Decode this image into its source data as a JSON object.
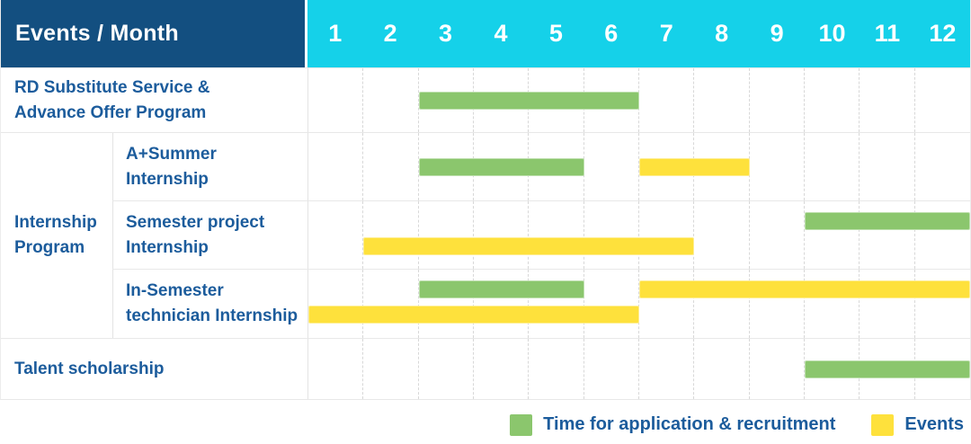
{
  "header": {
    "title": "Events / Month",
    "months": [
      "1",
      "2",
      "3",
      "4",
      "5",
      "6",
      "7",
      "8",
      "9",
      "10",
      "11",
      "12"
    ]
  },
  "colors": {
    "header_bg": "#134F80",
    "months_bg": "#15D1E9",
    "label_text": "#1C5C9C",
    "green": "#8BC66D",
    "yellow": "#FEE13C"
  },
  "rows": [
    {
      "kind": "simple",
      "label": "RD Substitute Service & Advance Offer Program",
      "label_lines": [
        "RD Substitute Service &",
        "Advance Offer Program"
      ],
      "height": 71,
      "bar_lines": [
        [
          {
            "color": "green",
            "start": 3,
            "end": 6
          }
        ]
      ]
    },
    {
      "kind": "group",
      "label": "Internship Program",
      "label_lines": [
        "Internship",
        "Program"
      ],
      "children": [
        {
          "label": "A+Summer Internship",
          "label_lines": [
            "A+Summer",
            "Internship"
          ],
          "height": 75,
          "bar_lines": [
            [
              {
                "color": "green",
                "start": 3,
                "end": 5
              },
              {
                "color": "yellow",
                "start": 7,
                "end": 8
              }
            ]
          ]
        },
        {
          "label": "Semester project Internship",
          "label_lines": [
            "Semester project",
            "Internship"
          ],
          "height": 75,
          "bar_lines": [
            [
              {
                "color": "green",
                "start": 10,
                "end": 12
              }
            ],
            [
              {
                "color": "yellow",
                "start": 2,
                "end": 7
              }
            ]
          ]
        },
        {
          "label": "In-Semester technician Internship",
          "label_lines": [
            "In-Semester",
            "technician Internship"
          ],
          "height": 76,
          "bar_lines": [
            [
              {
                "color": "green",
                "start": 3,
                "end": 5
              },
              {
                "color": "yellow",
                "start": 7,
                "end": 12
              }
            ],
            [
              {
                "color": "yellow",
                "start": 1,
                "end": 6
              }
            ]
          ]
        }
      ]
    },
    {
      "kind": "simple",
      "label": "Talent scholarship",
      "label_lines": [
        "Talent scholarship"
      ],
      "height": 67,
      "bar_lines": [
        [
          {
            "color": "green",
            "start": 10,
            "end": 12
          }
        ]
      ]
    }
  ],
  "legend": {
    "items": [
      {
        "color_key": "green",
        "label": "Time for application & recruitment"
      },
      {
        "color_key": "yellow",
        "label": "Events"
      }
    ]
  },
  "chart_data": {
    "type": "bar",
    "subtype": "gantt",
    "title": "Events / Month",
    "x_axis": {
      "label": "Month",
      "ticks": [
        1,
        2,
        3,
        4,
        5,
        6,
        7,
        8,
        9,
        10,
        11,
        12
      ],
      "range": [
        1,
        12
      ]
    },
    "gridlines": "vertical dashed per month",
    "legend_position": "bottom-right",
    "series_legend": [
      {
        "name": "Time for application & recruitment",
        "color": "#8BC66D"
      },
      {
        "name": "Events",
        "color": "#FEE13C"
      }
    ],
    "rows": [
      {
        "event": "RD Substitute Service & Advance Offer Program",
        "group": null,
        "segments": [
          {
            "series": "Time for application & recruitment",
            "start_month": 3,
            "end_month": 6
          }
        ]
      },
      {
        "event": "A+Summer Internship",
        "group": "Internship Program",
        "segments": [
          {
            "series": "Time for application & recruitment",
            "start_month": 3,
            "end_month": 5
          },
          {
            "series": "Events",
            "start_month": 7,
            "end_month": 8
          }
        ]
      },
      {
        "event": "Semester project Internship",
        "group": "Internship Program",
        "segments": [
          {
            "series": "Time for application & recruitment",
            "start_month": 10,
            "end_month": 12
          },
          {
            "series": "Events",
            "start_month": 2,
            "end_month": 7
          }
        ]
      },
      {
        "event": "In-Semester technician Internship",
        "group": "Internship Program",
        "segments": [
          {
            "series": "Time for application & recruitment",
            "start_month": 3,
            "end_month": 5
          },
          {
            "series": "Events",
            "start_month": 7,
            "end_month": 12
          },
          {
            "series": "Events",
            "start_month": 1,
            "end_month": 6
          }
        ]
      },
      {
        "event": "Talent scholarship",
        "group": null,
        "segments": [
          {
            "series": "Time for application & recruitment",
            "start_month": 10,
            "end_month": 12
          }
        ]
      }
    ]
  }
}
